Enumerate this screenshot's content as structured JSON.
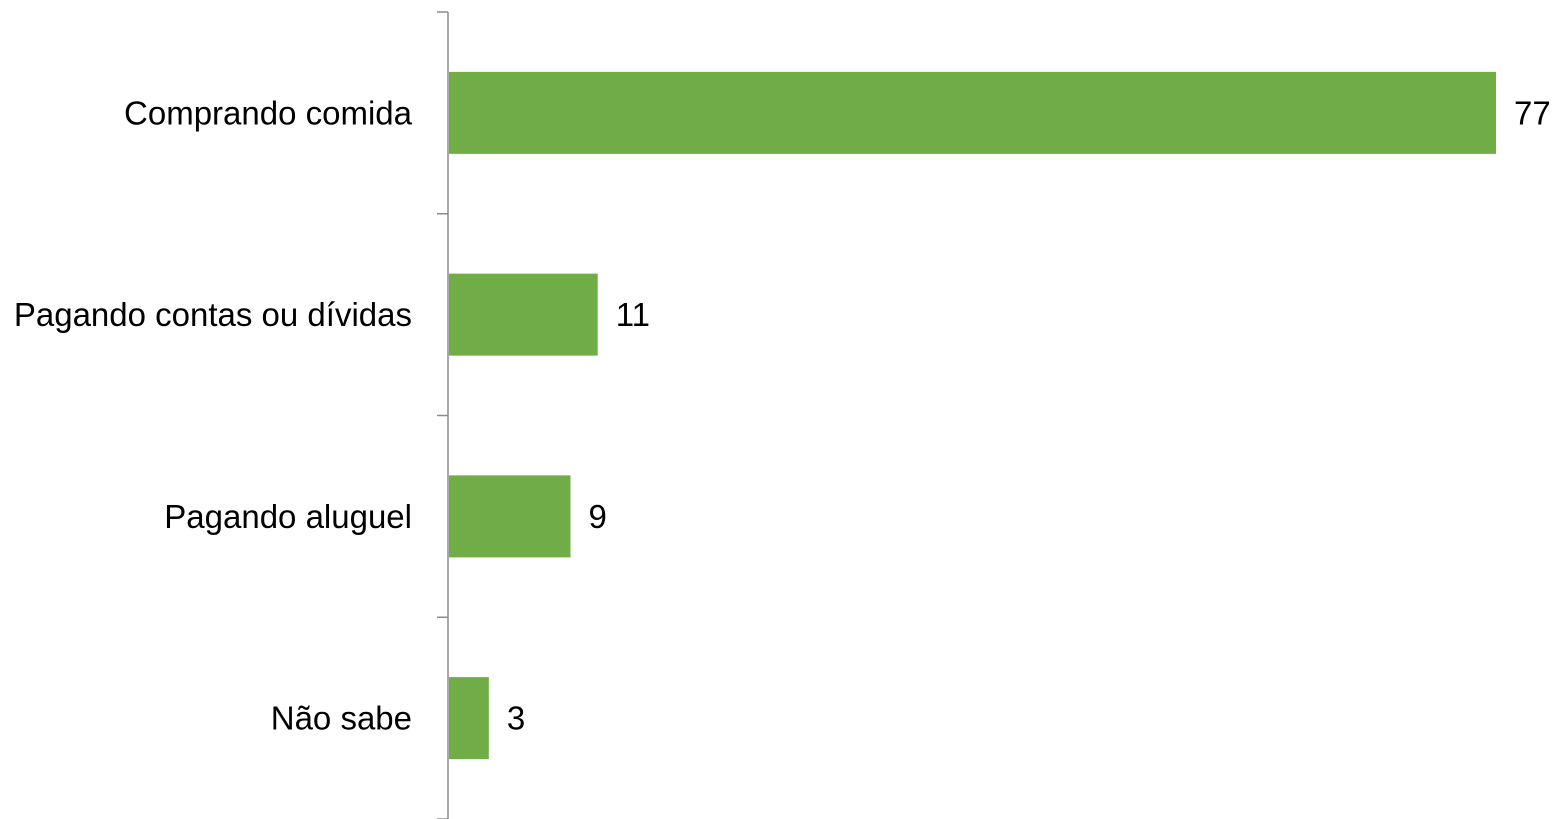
{
  "chart_data": {
    "type": "bar",
    "orientation": "horizontal",
    "categories": [
      "Comprando comida",
      "Pagando contas ou dívidas",
      "Pagando aluguel",
      "Não sabe"
    ],
    "values": [
      77,
      11,
      9,
      3
    ],
    "data_labels": [
      "77",
      "11",
      "9",
      "3"
    ],
    "title": "",
    "xlabel": "",
    "ylabel": "",
    "xlim": [
      0,
      77
    ],
    "grid": false,
    "legend": "none",
    "bar_color": "#70ad47"
  }
}
